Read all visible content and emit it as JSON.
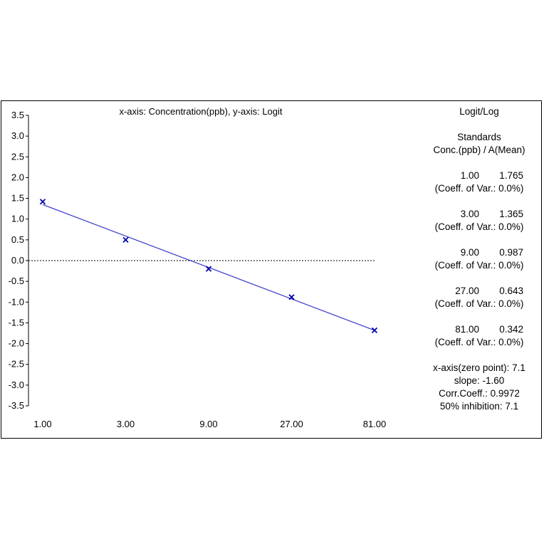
{
  "chart_data": {
    "type": "scatter",
    "title": "x-axis: Concentration(ppb), y-axis: Logit",
    "xscale": "log",
    "x_ticks": [
      "1.00",
      "3.00",
      "9.00",
      "27.00",
      "81.00"
    ],
    "y_ticks": [
      "3.5",
      "3.0",
      "2.5",
      "2.0",
      "1.5",
      "1.0",
      "0.5",
      "0.0",
      "-0.5",
      "-1.0",
      "-1.5",
      "-2.0",
      "-2.5",
      "-3.0",
      "-3.5"
    ],
    "ylim": [
      -3.5,
      3.5
    ],
    "xlim": [
      1,
      81
    ],
    "zero_line": true,
    "grid": false,
    "series": [
      {
        "marker": "x",
        "color": "#0000aa",
        "points": [
          {
            "x": 1,
            "y": 1.42
          },
          {
            "x": 3,
            "y": 0.5
          },
          {
            "x": 9,
            "y": -0.2
          },
          {
            "x": 27,
            "y": -0.88
          },
          {
            "x": 81,
            "y": -1.68
          }
        ]
      }
    ],
    "fit_line": {
      "color": "#3333cc",
      "from": {
        "x": 1,
        "y": 1.35
      },
      "to": {
        "x": 81,
        "y": -1.68
      }
    }
  },
  "side_panel": {
    "method": "Logit/Log",
    "standards_title": "Standards",
    "standards_header": "Conc.(ppb) / A(Mean)",
    "standards": [
      {
        "conc": "1.00",
        "mean": "1.765",
        "cv": "(Coeff. of Var.: 0.0%)"
      },
      {
        "conc": "3.00",
        "mean": "1.365",
        "cv": "(Coeff. of Var.: 0.0%)"
      },
      {
        "conc": "9.00",
        "mean": "0.987",
        "cv": "(Coeff. of Var.: 0.0%)"
      },
      {
        "conc": "27.00",
        "mean": "0.643",
        "cv": "(Coeff. of Var.: 0.0%)"
      },
      {
        "conc": "81.00",
        "mean": "0.342",
        "cv": "(Coeff. of Var.: 0.0%)"
      }
    ],
    "stats": [
      "x-axis(zero point): 7.1",
      "slope: -1.60",
      "Corr.Coeff.: 0.9972",
      "50% inhibition: 7.1"
    ]
  }
}
